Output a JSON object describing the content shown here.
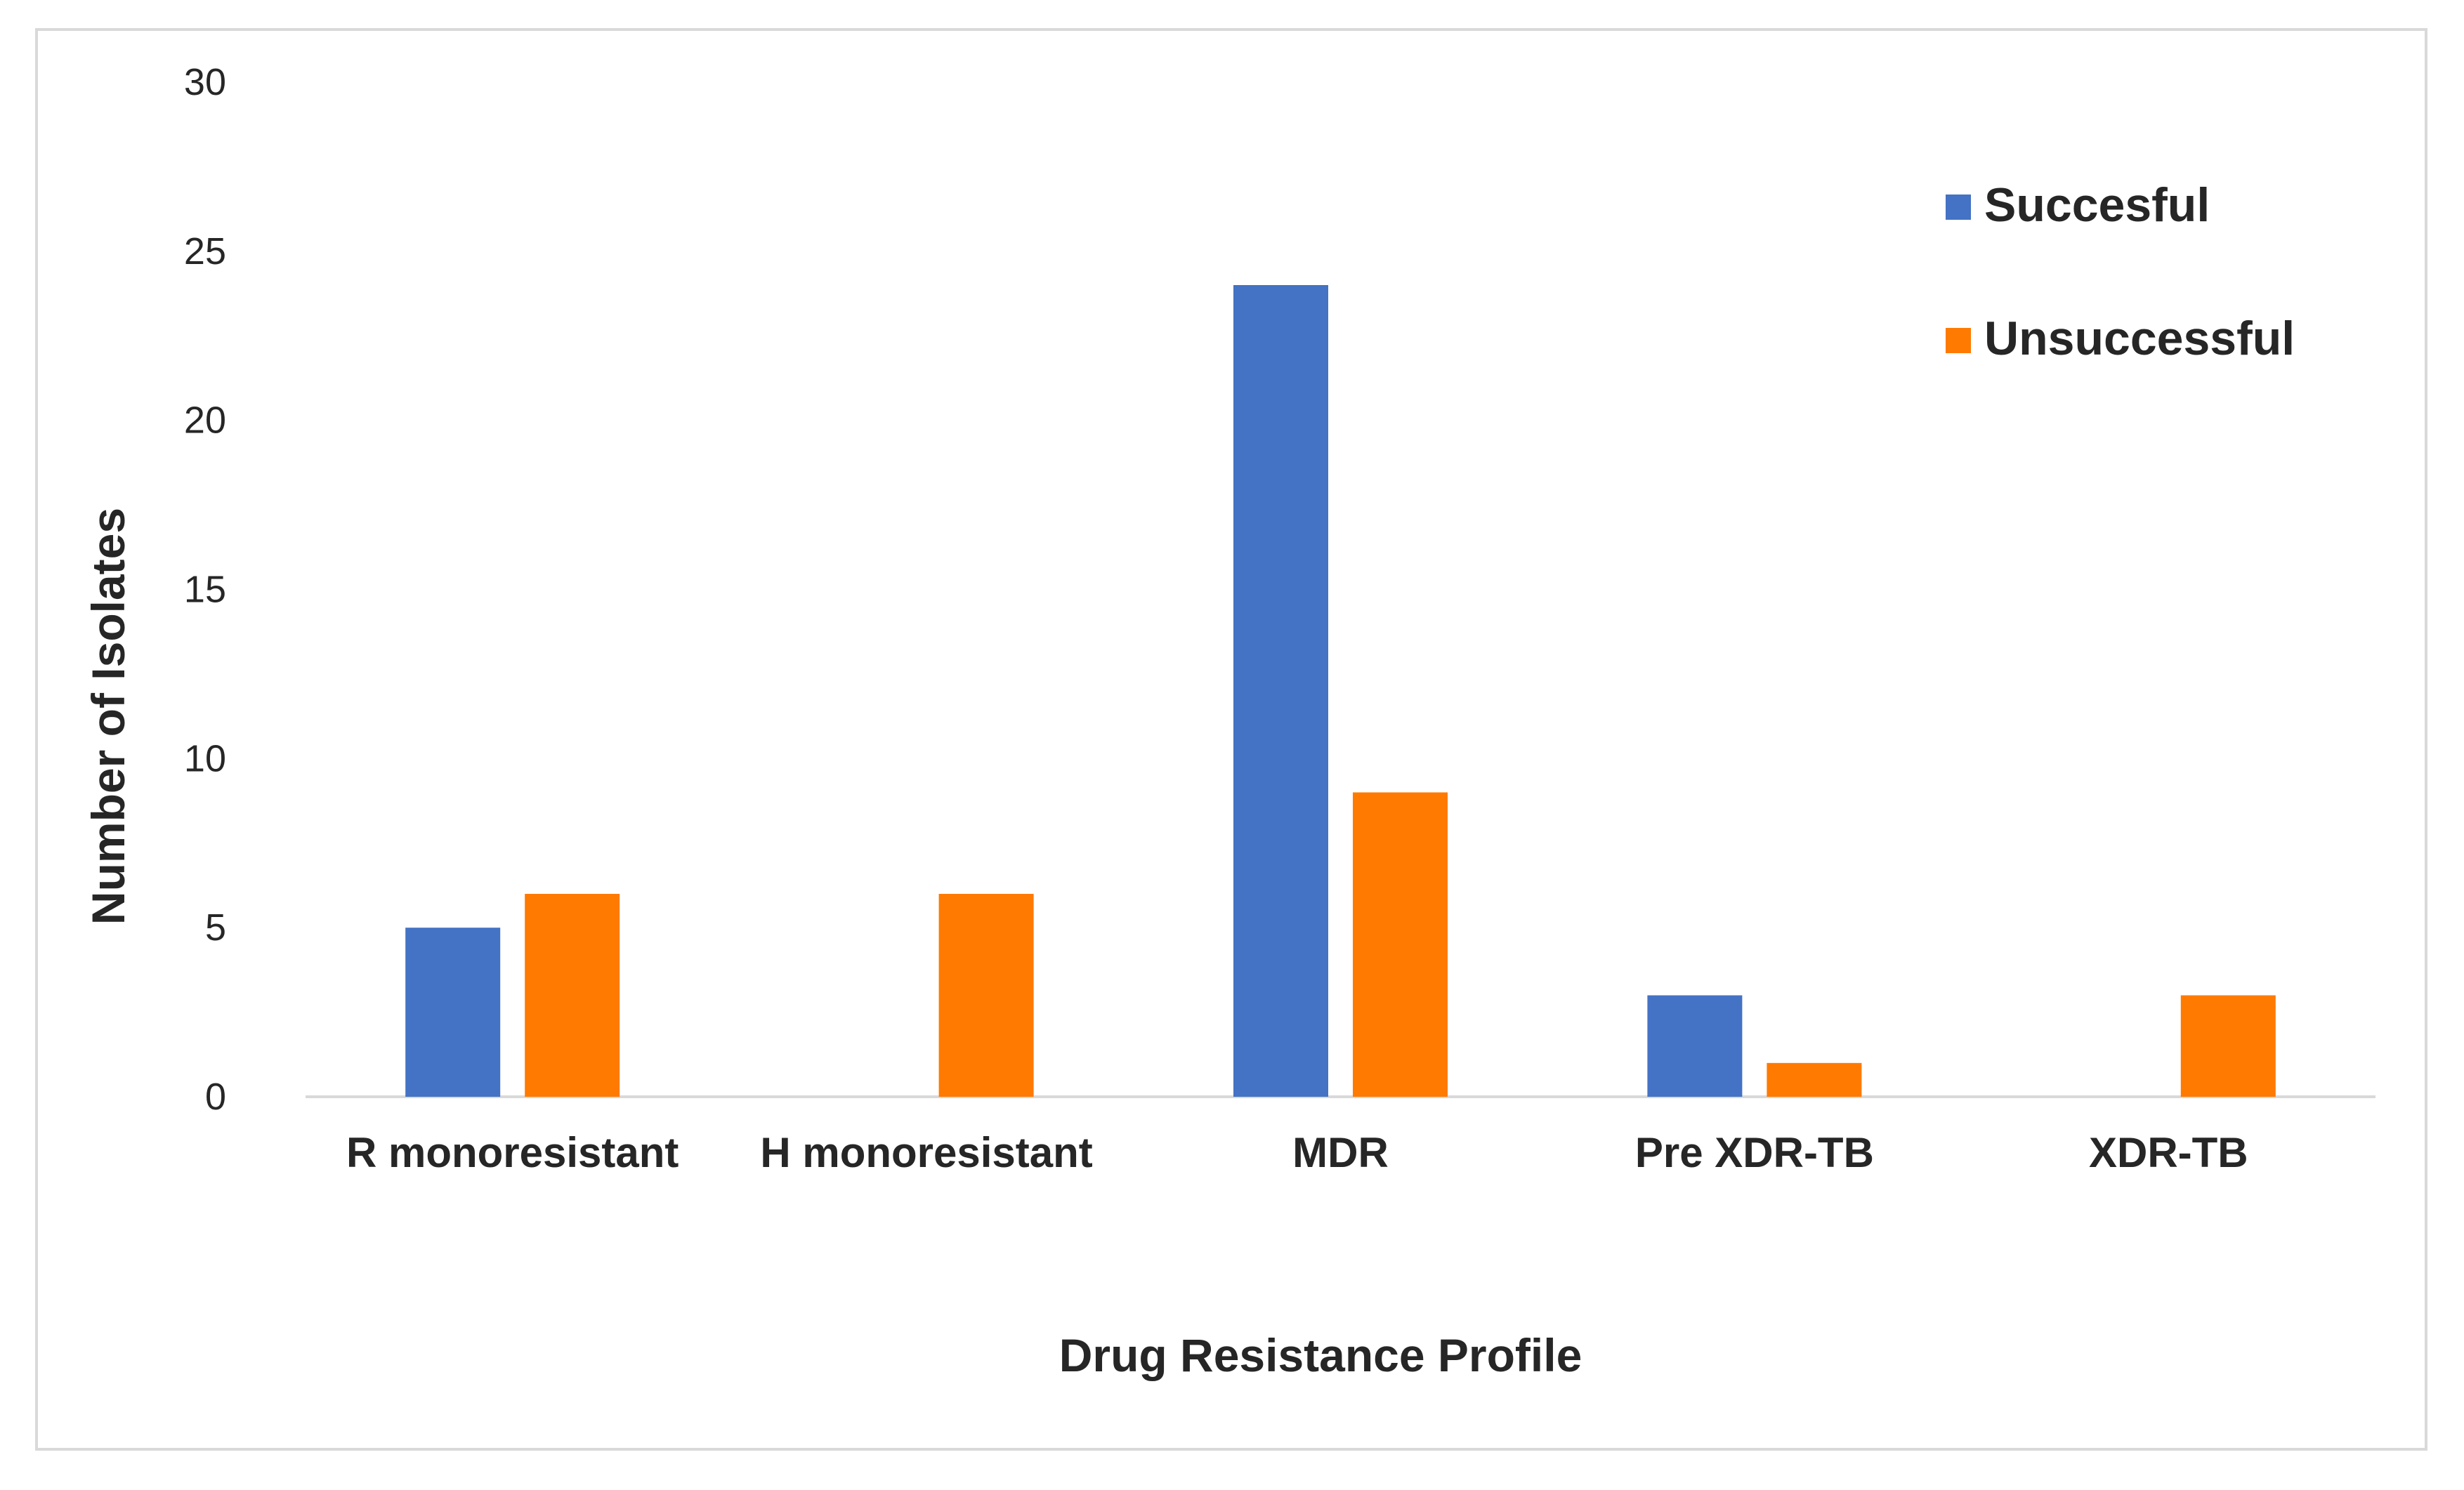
{
  "chart_data": {
    "type": "bar",
    "title": "",
    "xlabel": "Drug Resistance Profile",
    "ylabel": "Number of Isolates",
    "ylim": [
      0,
      30
    ],
    "yticks": [
      0,
      5,
      10,
      15,
      20,
      25,
      30
    ],
    "categories": [
      "R monoresistant",
      "H monoresistant",
      "MDR",
      "Pre XDR-TB",
      "XDR-TB"
    ],
    "series": [
      {
        "name": "Succesful",
        "color": "#4472C4",
        "values": [
          5,
          0,
          24,
          3,
          0
        ]
      },
      {
        "name": "Unsuccessful",
        "color": "#FF7A00",
        "values": [
          6,
          6,
          9,
          1,
          3
        ]
      }
    ],
    "grid": false,
    "legend_position": "top-right"
  }
}
